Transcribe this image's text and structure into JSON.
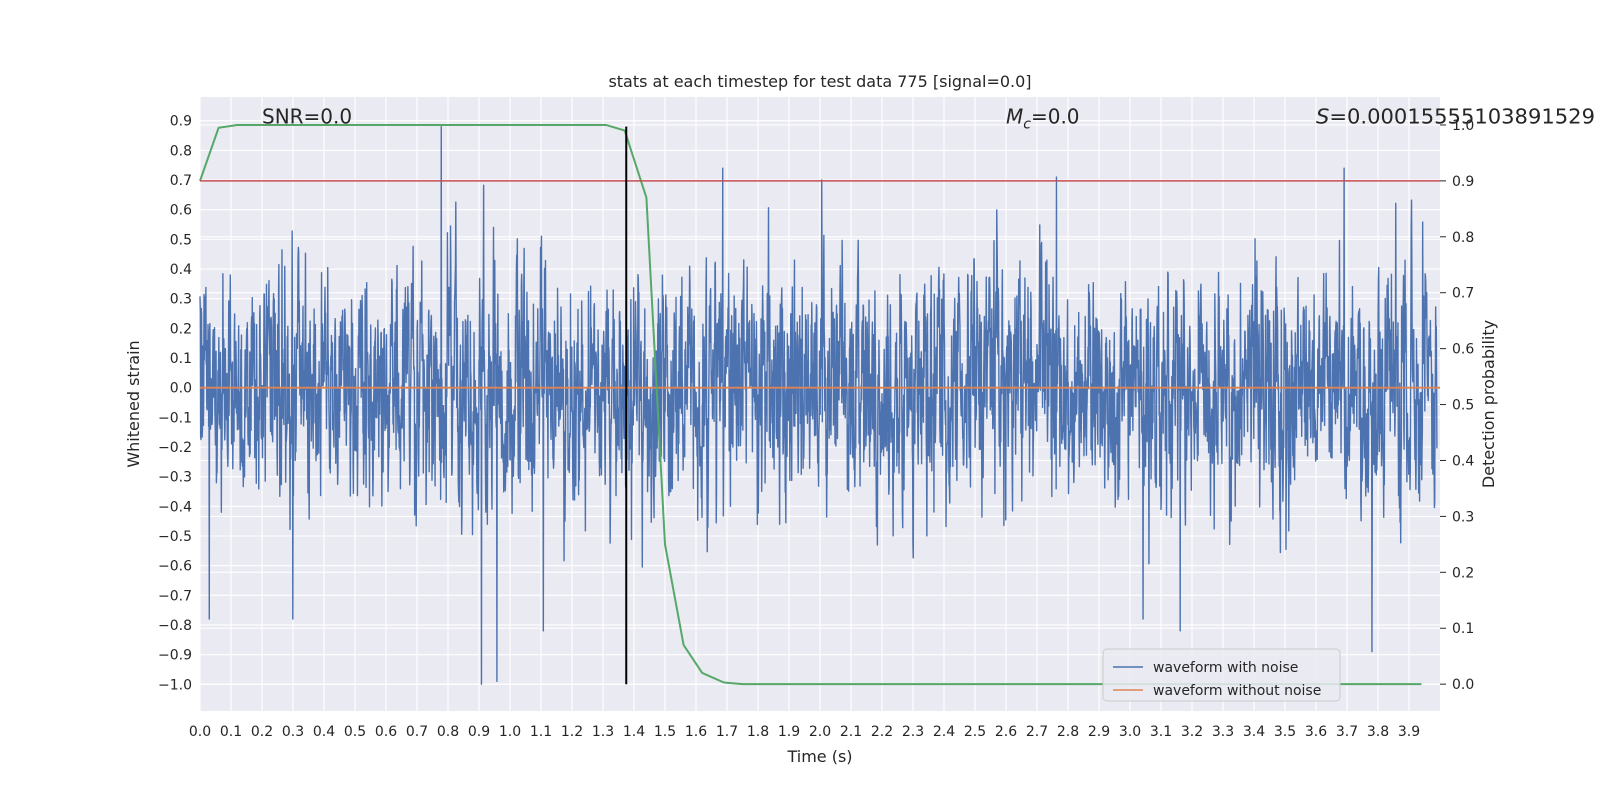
{
  "chart_data": {
    "type": "line",
    "title": "stats at each timestep for test data 775 [signal=0.0]",
    "xlabel": "Time (s)",
    "ylabel": "Whitened strain",
    "y2label": "Detection probability",
    "xlim": [
      0.0,
      4.0
    ],
    "ylim": [
      -1.09,
      0.98
    ],
    "y2lim": [
      -0.048,
      1.05
    ],
    "x_ticks": [
      "0.0",
      "0.1",
      "0.2",
      "0.3",
      "0.4",
      "0.5",
      "0.6",
      "0.7",
      "0.8",
      "0.9",
      "1.0",
      "1.1",
      "1.2",
      "1.3",
      "1.4",
      "1.5",
      "1.6",
      "1.7",
      "1.8",
      "1.9",
      "2.0",
      "2.1",
      "2.2",
      "2.3",
      "2.4",
      "2.5",
      "2.6",
      "2.7",
      "2.8",
      "2.9",
      "3.0",
      "3.1",
      "3.2",
      "3.3",
      "3.4",
      "3.5",
      "3.6",
      "3.7",
      "3.8",
      "3.9"
    ],
    "y_ticks": [
      "0.9",
      "0.8",
      "0.7",
      "0.6",
      "0.5",
      "0.4",
      "0.3",
      "0.2",
      "0.1",
      "0.0",
      "−0.1",
      "−0.2",
      "−0.3",
      "−0.4",
      "−0.5",
      "−0.6",
      "−0.7",
      "−0.8",
      "−0.9",
      "−1.0"
    ],
    "y2_ticks": [
      "1.0",
      "0.9",
      "0.8",
      "0.7",
      "0.6",
      "0.5",
      "0.4",
      "0.3",
      "0.2",
      "0.1",
      "0.0"
    ],
    "grid": true,
    "legend_position": "lower-right",
    "annotations": {
      "snr": "SNR=0.0",
      "mc": "=0.0",
      "mc_symbol": "M",
      "mc_subscript": "c",
      "s": "=0.00015555103891529",
      "s_symbol": "S"
    },
    "series": [
      {
        "name": "waveform with noise",
        "axis": "left",
        "color": "#4c72b0",
        "style": "noise",
        "extrema": [
          {
            "x": 0.78,
            "y": 0.88
          },
          {
            "x": 0.91,
            "y": -1.0
          },
          {
            "x": 0.96,
            "y": -0.99
          },
          {
            "x": 0.03,
            "y": -0.78
          },
          {
            "x": 1.11,
            "y": -0.82
          },
          {
            "x": 1.69,
            "y": 0.74
          },
          {
            "x": 2.77,
            "y": 0.71
          },
          {
            "x": 3.17,
            "y": -0.82
          },
          {
            "x": 3.7,
            "y": 0.74
          },
          {
            "x": 3.79,
            "y": -0.89
          },
          {
            "x": 3.05,
            "y": -0.78
          },
          {
            "x": 0.3,
            "y": -0.78
          }
        ]
      },
      {
        "name": "waveform without noise",
        "axis": "left",
        "color": "#dd8452",
        "style": "line",
        "x": [
          0.0,
          4.0
        ],
        "y": [
          0.0,
          0.0
        ]
      },
      {
        "name": "",
        "axis": "right",
        "color": "#55a868",
        "style": "line",
        "x": [
          0.0,
          0.06,
          0.12,
          0.19,
          0.25,
          0.31,
          0.37,
          0.44,
          0.5,
          0.56,
          0.62,
          0.69,
          0.75,
          0.81,
          0.87,
          0.94,
          1.0,
          1.06,
          1.12,
          1.19,
          1.25,
          1.31,
          1.37,
          1.44,
          1.5,
          1.56,
          1.62,
          1.69,
          1.75,
          1.81,
          1.87,
          1.94,
          2.0,
          2.5,
          3.0,
          3.5,
          3.94
        ],
        "y": [
          0.9,
          0.995,
          1.0,
          1.0,
          1.0,
          1.0,
          1.0,
          1.0,
          1.0,
          1.0,
          1.0,
          1.0,
          1.0,
          1.0,
          1.0,
          1.0,
          1.0,
          1.0,
          1.0,
          1.0,
          1.0,
          1.0,
          0.99,
          0.87,
          0.25,
          0.07,
          0.02,
          0.003,
          0.0,
          0.0,
          0.0,
          0.0,
          0.0,
          0.0,
          0.0,
          0.0,
          0.0
        ]
      },
      {
        "name": "",
        "axis": "right",
        "color": "#c44e52",
        "style": "hline",
        "y": 0.9
      },
      {
        "name": "",
        "axis": "left",
        "color": "#000000",
        "style": "vline",
        "x": 1.375,
        "y": [
          -1.0,
          0.88
        ]
      }
    ]
  }
}
